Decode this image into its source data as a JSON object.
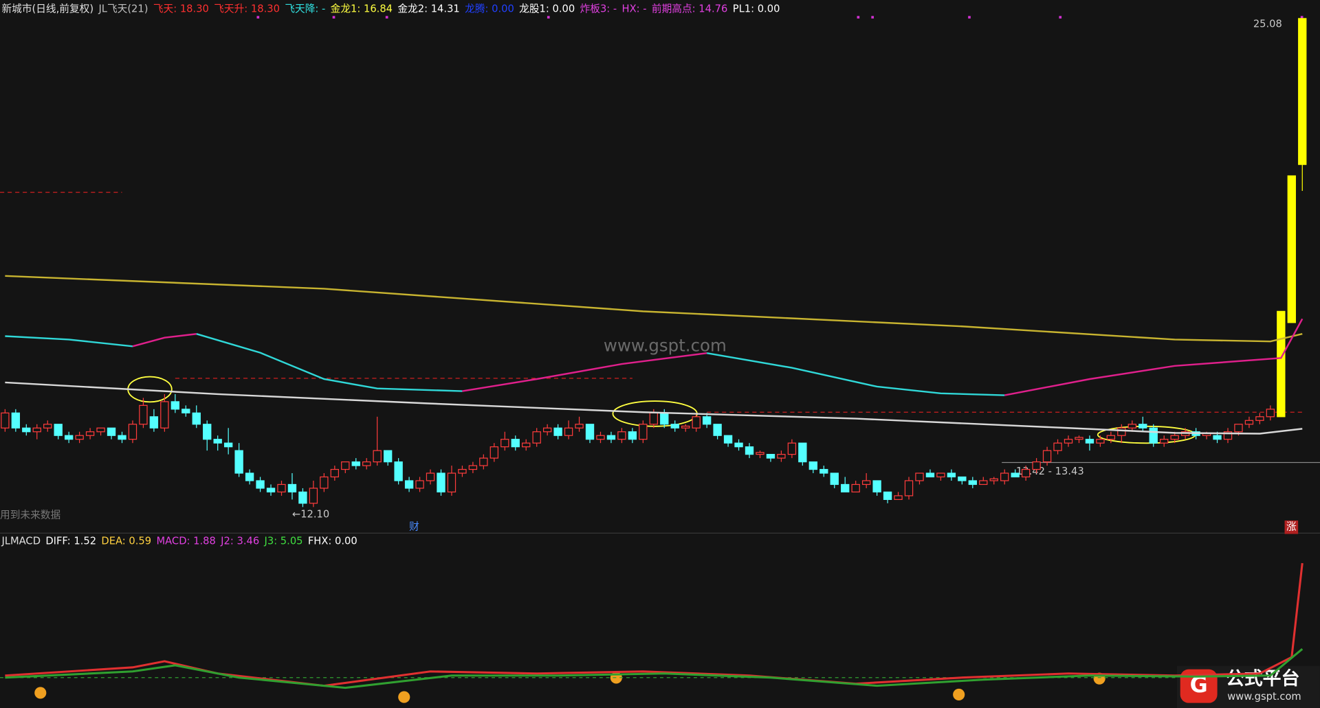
{
  "chart_data": {
    "type": "candlestick",
    "header": [
      {
        "text": "新城市(日线,前复权)",
        "color": "#e0e0e0"
      },
      {
        "text": "JL飞天(21)",
        "color": "#c0c0c0"
      },
      {
        "text": "飞天: 18.30",
        "color": "#ff3030"
      },
      {
        "text": "飞天升: 18.30",
        "color": "#ff3030"
      },
      {
        "text": "飞天降: -",
        "color": "#30e0e0"
      },
      {
        "text": "金龙1: 16.84",
        "color": "#ffff40"
      },
      {
        "text": "金龙2: 14.31",
        "color": "#ffffff"
      },
      {
        "text": "龙腾: 0.00",
        "color": "#2040ff"
      },
      {
        "text": "龙股1: 0.00",
        "color": "#ffffff"
      },
      {
        "text": "炸板3: -",
        "color": "#e040e0"
      },
      {
        "text": "HX: -",
        "color": "#e040e0"
      },
      {
        "text": "前期高点: 14.76",
        "color": "#e040e0"
      },
      {
        "text": "PL1: 0.00",
        "color": "#ffffff"
      }
    ],
    "ylim": [
      12.1,
      25.08
    ],
    "up_color": "#ff3c3c",
    "down_color": "#54ffff",
    "highlight": {
      "indices": [
        120,
        121,
        122
      ],
      "color": "#ffff00"
    },
    "candles": [
      [
        14.2,
        14.6,
        14.7,
        14.1
      ],
      [
        14.6,
        14.2,
        14.7,
        14.1
      ],
      [
        14.2,
        14.1,
        14.3,
        14.0
      ],
      [
        14.1,
        14.2,
        14.3,
        13.9
      ],
      [
        14.2,
        14.3,
        14.4,
        14.1
      ],
      [
        14.3,
        14.0,
        14.3,
        13.9
      ],
      [
        14.0,
        13.9,
        14.1,
        13.8
      ],
      [
        13.9,
        14.0,
        14.1,
        13.8
      ],
      [
        14.0,
        14.1,
        14.2,
        13.9
      ],
      [
        14.1,
        14.2,
        14.2,
        14.0
      ],
      [
        14.2,
        14.0,
        14.2,
        13.9
      ],
      [
        14.0,
        13.9,
        14.1,
        13.8
      ],
      [
        13.9,
        14.3,
        14.4,
        13.8
      ],
      [
        14.3,
        14.8,
        15.0,
        14.2
      ],
      [
        14.5,
        14.2,
        14.7,
        14.1
      ],
      [
        14.2,
        14.9,
        15.1,
        14.1
      ],
      [
        14.9,
        14.7,
        15.1,
        14.6
      ],
      [
        14.7,
        14.6,
        14.8,
        14.5
      ],
      [
        14.6,
        14.3,
        14.8,
        14.2
      ],
      [
        14.3,
        13.9,
        14.4,
        13.6
      ],
      [
        13.9,
        13.8,
        14.0,
        13.6
      ],
      [
        13.8,
        13.7,
        14.2,
        13.5
      ],
      [
        13.6,
        13.0,
        13.8,
        12.9
      ],
      [
        13.0,
        12.8,
        13.1,
        12.7
      ],
      [
        12.8,
        12.6,
        12.9,
        12.5
      ],
      [
        12.6,
        12.5,
        12.7,
        12.4
      ],
      [
        12.5,
        12.7,
        12.8,
        12.4
      ],
      [
        12.7,
        12.5,
        13.0,
        12.3
      ],
      [
        12.5,
        12.2,
        12.6,
        12.1
      ],
      [
        12.2,
        12.6,
        12.8,
        12.1
      ],
      [
        12.6,
        12.9,
        13.0,
        12.5
      ],
      [
        12.9,
        13.1,
        13.2,
        12.8
      ],
      [
        13.1,
        13.3,
        13.3,
        13.0
      ],
      [
        13.3,
        13.2,
        13.4,
        13.1
      ],
      [
        13.2,
        13.3,
        13.4,
        13.1
      ],
      [
        13.3,
        13.6,
        14.5,
        13.2
      ],
      [
        13.6,
        13.3,
        13.6,
        13.2
      ],
      [
        13.3,
        12.8,
        13.4,
        12.7
      ],
      [
        12.8,
        12.6,
        12.9,
        12.5
      ],
      [
        12.6,
        12.8,
        12.9,
        12.5
      ],
      [
        12.8,
        13.0,
        13.1,
        12.7
      ],
      [
        13.0,
        12.5,
        13.1,
        12.4
      ],
      [
        12.5,
        13.0,
        13.2,
        12.4
      ],
      [
        13.0,
        13.1,
        13.2,
        12.9
      ],
      [
        13.1,
        13.2,
        13.3,
        13.0
      ],
      [
        13.2,
        13.4,
        13.5,
        13.1
      ],
      [
        13.4,
        13.7,
        13.8,
        13.3
      ],
      [
        13.7,
        13.9,
        14.1,
        13.6
      ],
      [
        13.9,
        13.7,
        14.0,
        13.6
      ],
      [
        13.7,
        13.8,
        13.9,
        13.6
      ],
      [
        13.8,
        14.1,
        14.2,
        13.7
      ],
      [
        14.1,
        14.2,
        14.3,
        14.0
      ],
      [
        14.2,
        14.0,
        14.3,
        13.9
      ],
      [
        14.0,
        14.2,
        14.4,
        13.9
      ],
      [
        14.2,
        14.3,
        14.5,
        14.1
      ],
      [
        14.3,
        13.9,
        14.3,
        13.8
      ],
      [
        13.9,
        14.0,
        14.1,
        13.8
      ],
      [
        14.0,
        13.9,
        14.1,
        13.8
      ],
      [
        13.9,
        14.1,
        14.2,
        13.8
      ],
      [
        14.1,
        13.9,
        14.2,
        13.8
      ],
      [
        13.9,
        14.3,
        14.4,
        13.8
      ],
      [
        14.3,
        14.6,
        14.7,
        14.2
      ],
      [
        14.6,
        14.3,
        14.7,
        14.2
      ],
      [
        14.3,
        14.2,
        14.4,
        14.1
      ],
      [
        14.2,
        14.25,
        14.3,
        14.1
      ],
      [
        14.2,
        14.5,
        14.6,
        14.1
      ],
      [
        14.5,
        14.3,
        14.6,
        14.2
      ],
      [
        14.3,
        14.0,
        14.3,
        13.9
      ],
      [
        14.0,
        13.8,
        14.0,
        13.7
      ],
      [
        13.8,
        13.7,
        13.9,
        13.6
      ],
      [
        13.7,
        13.5,
        13.8,
        13.4
      ],
      [
        13.5,
        13.55,
        13.6,
        13.4
      ],
      [
        13.5,
        13.4,
        13.5,
        13.3
      ],
      [
        13.4,
        13.5,
        13.6,
        13.3
      ],
      [
        13.5,
        13.8,
        13.9,
        13.4
      ],
      [
        13.8,
        13.3,
        13.8,
        13.2
      ],
      [
        13.3,
        13.1,
        13.3,
        13.0
      ],
      [
        13.1,
        13.0,
        13.2,
        12.9
      ],
      [
        13.0,
        12.7,
        13.0,
        12.6
      ],
      [
        12.7,
        12.5,
        12.9,
        12.5
      ],
      [
        12.5,
        12.7,
        12.8,
        12.5
      ],
      [
        12.7,
        12.8,
        13.0,
        12.6
      ],
      [
        12.8,
        12.5,
        12.8,
        12.4
      ],
      [
        12.5,
        12.3,
        12.5,
        12.2
      ],
      [
        12.3,
        12.4,
        12.5,
        12.3
      ],
      [
        12.4,
        12.8,
        12.9,
        12.3
      ],
      [
        12.8,
        13.0,
        13.0,
        12.7
      ],
      [
        13.0,
        12.9,
        13.1,
        12.9
      ],
      [
        12.9,
        13.0,
        13.0,
        12.8
      ],
      [
        13.0,
        12.9,
        13.1,
        12.8
      ],
      [
        12.9,
        12.8,
        12.9,
        12.7
      ],
      [
        12.8,
        12.7,
        12.9,
        12.6
      ],
      [
        12.7,
        12.8,
        12.9,
        12.7
      ],
      [
        12.8,
        12.85,
        12.9,
        12.7
      ],
      [
        12.8,
        13.0,
        13.1,
        12.7
      ],
      [
        13.0,
        12.9,
        13.1,
        12.9
      ],
      [
        12.9,
        13.1,
        13.2,
        12.8
      ],
      [
        13.1,
        13.3,
        13.4,
        13.0
      ],
      [
        13.3,
        13.6,
        13.7,
        13.2
      ],
      [
        13.6,
        13.8,
        13.9,
        13.5
      ],
      [
        13.8,
        13.9,
        14.0,
        13.7
      ],
      [
        13.9,
        13.95,
        14.0,
        13.8
      ],
      [
        13.9,
        13.8,
        14.0,
        13.6
      ],
      [
        13.8,
        13.9,
        14.0,
        13.7
      ],
      [
        13.9,
        14.0,
        14.1,
        13.8
      ],
      [
        14.0,
        14.2,
        14.3,
        13.8
      ],
      [
        14.2,
        14.3,
        14.4,
        14.1
      ],
      [
        14.3,
        14.2,
        14.5,
        14.1
      ],
      [
        14.2,
        13.8,
        14.3,
        13.7
      ],
      [
        13.8,
        13.9,
        14.0,
        13.7
      ],
      [
        13.9,
        14.0,
        14.1,
        13.8
      ],
      [
        14.0,
        14.1,
        14.2,
        13.9
      ],
      [
        14.1,
        14.0,
        14.2,
        13.9
      ],
      [
        14.0,
        14.05,
        14.1,
        13.9
      ],
      [
        14.0,
        13.9,
        14.1,
        13.8
      ],
      [
        13.9,
        14.1,
        14.2,
        13.8
      ],
      [
        14.1,
        14.3,
        14.3,
        14.0
      ],
      [
        14.3,
        14.4,
        14.5,
        14.2
      ],
      [
        14.4,
        14.5,
        14.6,
        14.3
      ],
      [
        14.5,
        14.7,
        14.8,
        14.4
      ],
      [
        14.5,
        17.3,
        17.3,
        14.5
      ],
      [
        17.0,
        20.9,
        20.9,
        17.0
      ],
      [
        21.2,
        25.08,
        25.08,
        20.5
      ]
    ],
    "overlays": [
      {
        "color": "#c8b430",
        "points": [
          [
            0,
            18.24
          ],
          [
            30,
            17.9
          ],
          [
            60,
            17.3
          ],
          [
            90,
            16.9
          ],
          [
            110,
            16.55
          ],
          [
            119,
            16.5
          ],
          [
            122,
            16.7
          ]
        ]
      },
      {
        "color": "#d8d8d8",
        "points": [
          [
            0,
            15.41
          ],
          [
            20,
            15.1
          ],
          [
            40,
            14.85
          ],
          [
            60,
            14.62
          ],
          [
            80,
            14.45
          ],
          [
            100,
            14.2
          ],
          [
            110,
            14.07
          ],
          [
            118,
            14.05
          ],
          [
            122,
            14.18
          ]
        ]
      },
      {
        "color": "#30d8d8",
        "points": [
          [
            0,
            16.64
          ],
          [
            6,
            16.55
          ],
          [
            12,
            16.37
          ]
        ]
      },
      {
        "color": "#e0208c",
        "points": [
          [
            12,
            16.37
          ],
          [
            15,
            16.6
          ],
          [
            18,
            16.7
          ]
        ]
      },
      {
        "color": "#30d8d8",
        "points": [
          [
            18,
            16.7
          ],
          [
            24,
            16.2
          ],
          [
            30,
            15.5
          ],
          [
            35,
            15.25
          ],
          [
            43,
            15.18
          ]
        ]
      },
      {
        "color": "#e0208c",
        "points": [
          [
            43,
            15.18
          ],
          [
            50,
            15.5
          ],
          [
            58,
            15.9
          ],
          [
            66,
            16.19
          ]
        ]
      },
      {
        "color": "#30d8d8",
        "points": [
          [
            66,
            16.19
          ],
          [
            74,
            15.8
          ],
          [
            82,
            15.3
          ],
          [
            88,
            15.12
          ],
          [
            94,
            15.07
          ]
        ]
      },
      {
        "color": "#e0208c",
        "points": [
          [
            94,
            15.07
          ],
          [
            102,
            15.5
          ],
          [
            110,
            15.85
          ],
          [
            120,
            16.06
          ],
          [
            122,
            17.1
          ]
        ]
      }
    ],
    "levels": [
      {
        "value": 20.46,
        "from": 0,
        "to": 11
      },
      {
        "value": 15.52,
        "from": 16,
        "to": 59
      },
      {
        "value": 14.62,
        "from": 66,
        "to": 122
      }
    ],
    "max_label": "25.08",
    "min_label": "←12.10",
    "range_label": "13.42 - 13.43",
    "future_note": "用到未来数据",
    "cai": "财",
    "zhang": "涨",
    "watermark": "www.gspt.com",
    "indicator": {
      "header": [
        {
          "text": "JLMACD",
          "color": "#e0e0e0"
        },
        {
          "text": "DIFF: 1.52",
          "color": "#ffffff"
        },
        {
          "text": "DEA: 0.59",
          "color": "#ffd040"
        },
        {
          "text": "MACD: 1.88",
          "color": "#e040e0"
        },
        {
          "text": "J2: 3.46",
          "color": "#e040e0"
        },
        {
          "text": "J3: 5.05",
          "color": "#40e040"
        },
        {
          "text": "FHX: 0.00",
          "color": "#ffffff"
        }
      ],
      "ylim": [
        -1.2,
        6
      ],
      "lines": [
        {
          "color": "#e03030",
          "points": [
            [
              0,
              0.1
            ],
            [
              12,
              0.5
            ],
            [
              15,
              0.8
            ],
            [
              20,
              0.2
            ],
            [
              30,
              -0.4
            ],
            [
              40,
              0.3
            ],
            [
              50,
              0.2
            ],
            [
              60,
              0.3
            ],
            [
              70,
              0.1
            ],
            [
              80,
              -0.3
            ],
            [
              90,
              0.0
            ],
            [
              100,
              0.2
            ],
            [
              110,
              0.1
            ],
            [
              118,
              0.2
            ],
            [
              121,
              1.0
            ],
            [
              122,
              5.6
            ]
          ]
        },
        {
          "color": "#30a030",
          "points": [
            [
              0,
              0.0
            ],
            [
              12,
              0.3
            ],
            [
              16,
              0.6
            ],
            [
              22,
              0.0
            ],
            [
              32,
              -0.5
            ],
            [
              42,
              0.1
            ],
            [
              52,
              0.1
            ],
            [
              62,
              0.2
            ],
            [
              72,
              0.0
            ],
            [
              82,
              -0.4
            ],
            [
              92,
              -0.1
            ],
            [
              102,
              0.1
            ],
            [
              112,
              0.05
            ],
            [
              119,
              0.1
            ],
            [
              122,
              1.4
            ]
          ]
        }
      ]
    },
    "logo": {
      "name": "公式平台",
      "url": "www.gspt.com"
    }
  }
}
